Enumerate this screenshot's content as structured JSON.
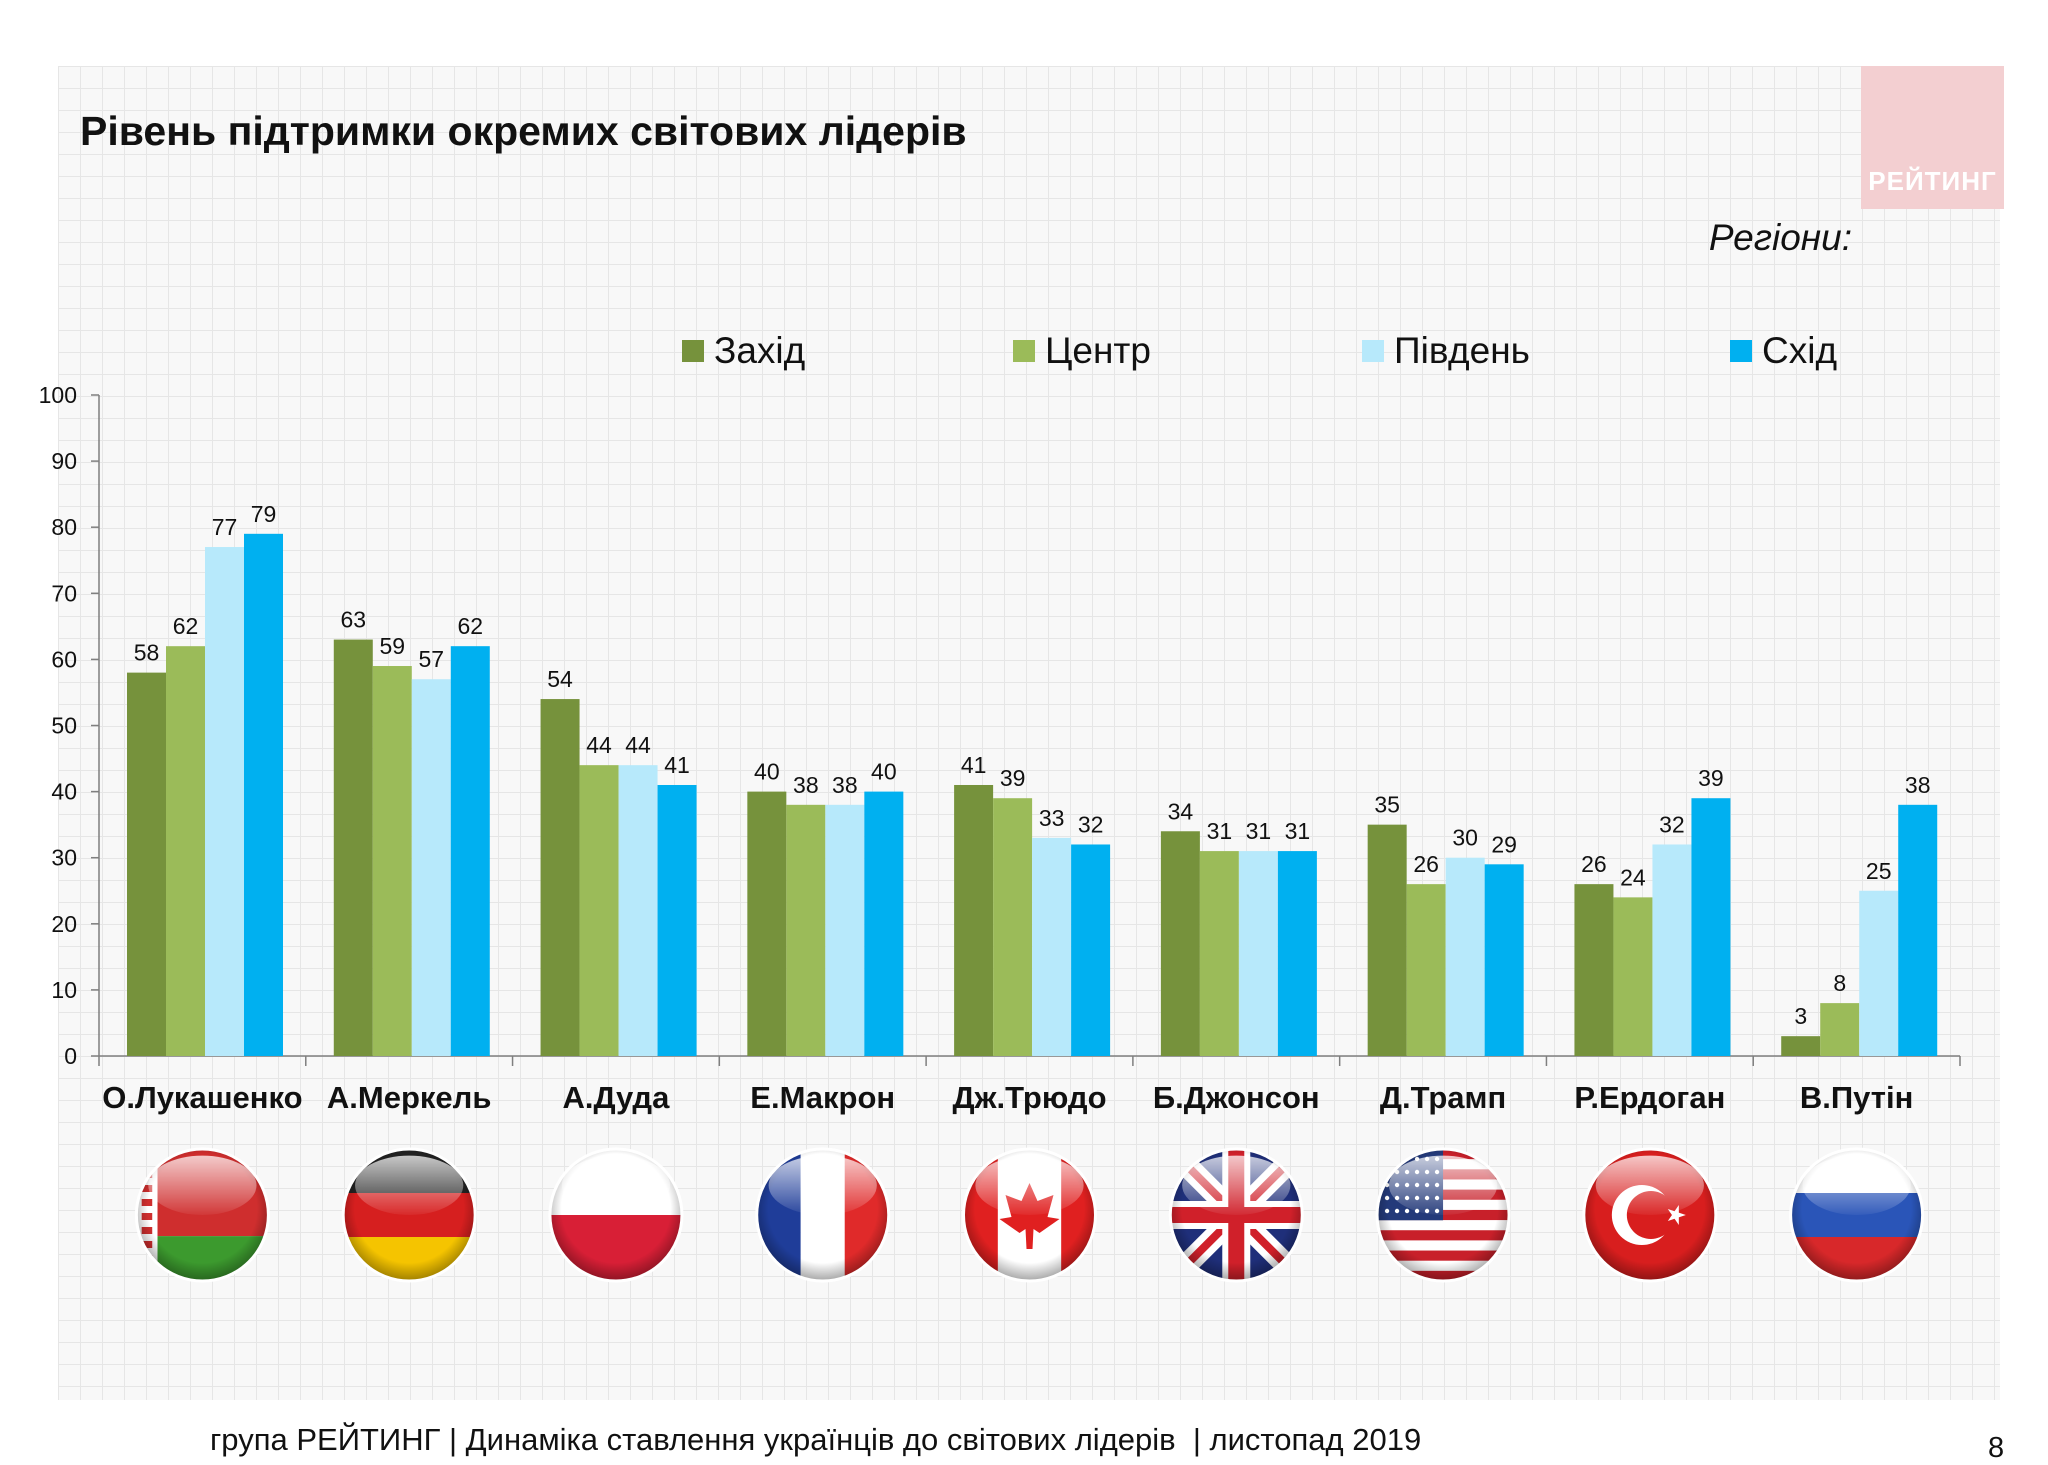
{
  "title": "Рівень підтримки окремих світових лідерів",
  "subtitle": "Регіони:",
  "logo_text": "РЕЙТИНГ",
  "footer": "група РЕЙТИНГ | Динаміка ставлення українців до світових лідерів  | листопад 2019",
  "page_number": "8",
  "colors": {
    "Захід": "#76923c",
    "Центр": "#9bbb59",
    "Південь": "#b7e9fb",
    "Схід": "#00b0f0"
  },
  "flags": [
    "belarus-flag-icon",
    "germany-flag-icon",
    "poland-flag-icon",
    "france-flag-icon",
    "canada-flag-icon",
    "uk-flag-icon",
    "usa-flag-icon",
    "turkey-flag-icon",
    "russia-flag-icon"
  ],
  "chart_data": {
    "type": "bar",
    "title": "Рівень підтримки окремих світових лідерів",
    "categories": [
      "О.Лукашенко",
      "А.Меркель",
      "А.Дуда",
      "Е.Макрон",
      "Дж.Трюдо",
      "Б.Джонсон",
      "Д.Трамп",
      "Р.Ердоган",
      "В.Путін"
    ],
    "series": [
      {
        "name": "Захід",
        "values": [
          58,
          63,
          54,
          40,
          41,
          34,
          35,
          26,
          3
        ]
      },
      {
        "name": "Центр",
        "values": [
          62,
          59,
          44,
          38,
          39,
          31,
          26,
          24,
          8
        ]
      },
      {
        "name": "Південь",
        "values": [
          77,
          57,
          44,
          38,
          33,
          31,
          30,
          32,
          25
        ]
      },
      {
        "name": "Схід",
        "values": [
          79,
          62,
          41,
          40,
          32,
          31,
          29,
          39,
          38
        ]
      }
    ],
    "ylim": [
      0,
      100
    ],
    "yticks": [
      0,
      10,
      20,
      30,
      40,
      50,
      60,
      70,
      80,
      90,
      100
    ],
    "legend_position": "top",
    "grid": false
  }
}
